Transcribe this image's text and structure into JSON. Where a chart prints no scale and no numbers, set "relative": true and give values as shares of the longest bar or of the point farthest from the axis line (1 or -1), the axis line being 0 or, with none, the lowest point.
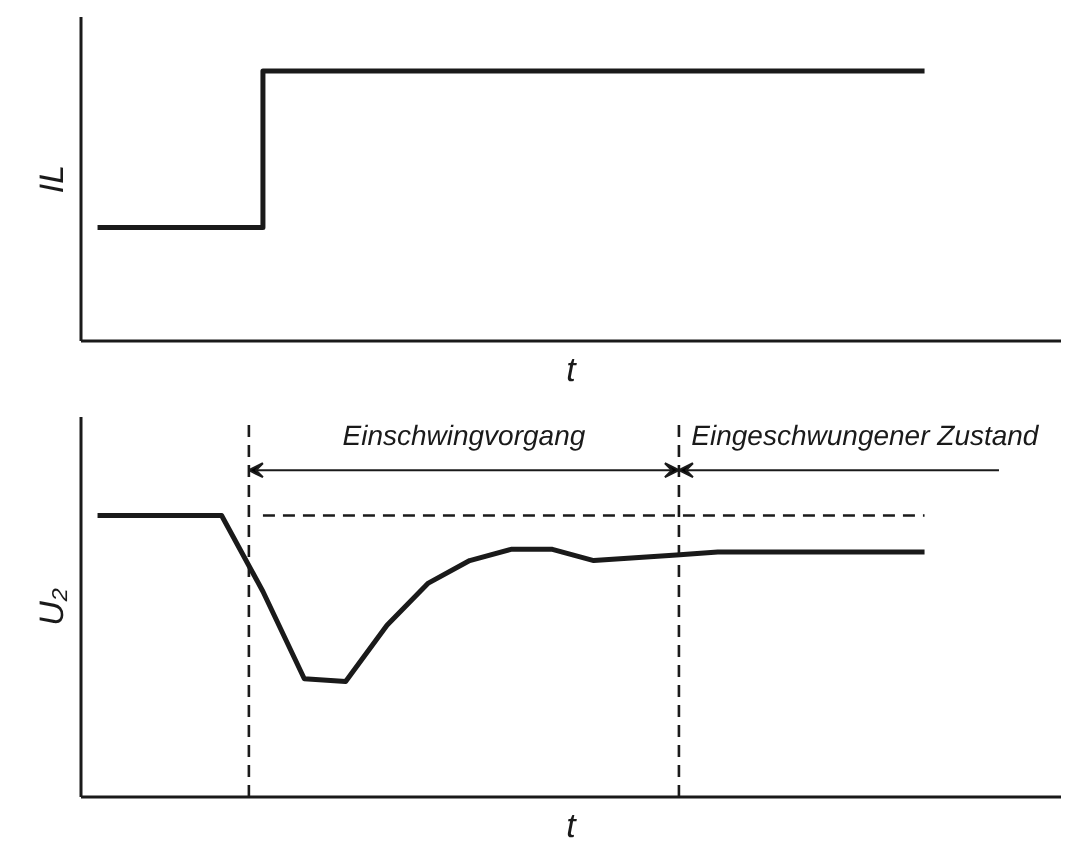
{
  "chart_data": [
    {
      "type": "step",
      "relative": true,
      "ylabel": "IL",
      "xlabel": "t",
      "color": "#1a1a1a",
      "categories": [
        null,
        null,
        null,
        null,
        null,
        null,
        null,
        null,
        null,
        null,
        null,
        null,
        null,
        null,
        null,
        null,
        null,
        null,
        null,
        null,
        null
      ],
      "values": [
        0.42,
        0.42,
        0.42,
        0.42,
        1,
        1,
        1,
        1,
        1,
        1,
        1,
        1,
        1,
        1,
        1,
        1,
        1,
        1,
        1,
        1,
        1
      ]
    },
    {
      "type": "line",
      "relative": true,
      "ylabel": "U₂",
      "xlabel": "t",
      "categories": [
        null,
        null,
        null,
        null,
        null,
        null,
        null,
        null,
        null,
        null,
        null,
        null,
        null,
        null,
        null,
        null,
        null,
        null,
        null,
        null,
        null
      ],
      "series": [
        {
          "color": "#1a1a1a",
          "values": [
            1,
            1,
            1,
            1,
            0.73,
            0.42,
            0.41,
            0.61,
            0.76,
            0.84,
            0.88,
            0.88,
            0.84,
            0.85,
            0.86,
            0.87,
            0.87,
            0.87,
            0.87,
            0.87,
            0.87
          ]
        },
        {
          "color": "#1a1a1a",
          "line_style": "dashed",
          "values": [
            null,
            null,
            null,
            null,
            1,
            1,
            1,
            1,
            1,
            1,
            1,
            1,
            1,
            1,
            1,
            1,
            1,
            1,
            1,
            1,
            1
          ]
        }
      ],
      "annotations": [
        "Einschwingvorgang",
        "Eingeschwungener Zustand"
      ]
    }
  ]
}
